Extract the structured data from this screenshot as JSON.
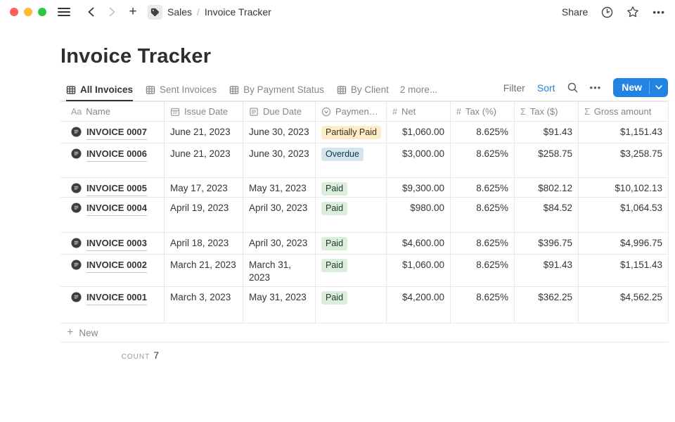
{
  "topbar": {
    "breadcrumb": {
      "workspace": "Sales",
      "separator": "/",
      "page": "Invoice Tracker",
      "icon": "tag-icon"
    },
    "share_label": "Share",
    "icons": [
      "clock-icon",
      "star-icon",
      "more-icon"
    ]
  },
  "page": {
    "title": "Invoice Tracker"
  },
  "views": {
    "tabs": [
      {
        "label": "All Invoices",
        "active": true,
        "icon": "table-view-icon"
      },
      {
        "label": "Sent Invoices",
        "active": false,
        "icon": "table-view-icon"
      },
      {
        "label": "By Payment Status",
        "active": false,
        "icon": "table-view-icon"
      },
      {
        "label": "By Client",
        "active": false,
        "icon": "table-view-icon"
      }
    ],
    "more_label": "2 more..."
  },
  "controls": {
    "filter_label": "Filter",
    "sort_label": "Sort",
    "new_label": "New",
    "search_icon": "search-icon",
    "more_icon": "more-icon"
  },
  "table": {
    "columns": [
      {
        "label": "Name",
        "icon": "text-property-icon",
        "glyph": "Aa"
      },
      {
        "label": "Issue Date",
        "icon": "calendar-icon",
        "glyph": null
      },
      {
        "label": "Due Date",
        "icon": "document-icon",
        "glyph": null
      },
      {
        "label": "Payment …",
        "icon": "select-property-icon",
        "glyph": null
      },
      {
        "label": "Net",
        "icon": "number-property-icon",
        "glyph": "#"
      },
      {
        "label": "Tax (%)",
        "icon": "number-property-icon",
        "glyph": "#"
      },
      {
        "label": "Tax ($)",
        "icon": "formula-property-icon",
        "glyph": "Σ"
      },
      {
        "label": "Gross amount",
        "icon": "formula-property-icon",
        "glyph": "Σ"
      }
    ],
    "rows": [
      {
        "name": "INVOICE 0007",
        "issue_date": "June 21, 2023",
        "due_date": "June 30, 2023",
        "status": {
          "label": "Partially Paid",
          "color": "yellow"
        },
        "net": "$1,060.00",
        "tax_pct": "8.625%",
        "tax_usd": "$91.43",
        "gross": "$1,151.43"
      },
      {
        "name": "INVOICE 0006",
        "issue_date": "June 21, 2023",
        "due_date": "June 30, 2023",
        "status": {
          "label": "Overdue",
          "color": "blue"
        },
        "net": "$3,000.00",
        "tax_pct": "8.625%",
        "tax_usd": "$258.75",
        "gross": "$3,258.75"
      },
      {
        "name": "INVOICE 0005",
        "issue_date": "May 17, 2023",
        "due_date": "May 31, 2023",
        "status": {
          "label": "Paid",
          "color": "green"
        },
        "net": "$9,300.00",
        "tax_pct": "8.625%",
        "tax_usd": "$802.12",
        "gross": "$10,102.13"
      },
      {
        "name": "INVOICE 0004",
        "issue_date": "April 19, 2023",
        "due_date": "April 30, 2023",
        "status": {
          "label": "Paid",
          "color": "green"
        },
        "net": "$980.00",
        "tax_pct": "8.625%",
        "tax_usd": "$84.52",
        "gross": "$1,064.53"
      },
      {
        "name": "INVOICE 0003",
        "issue_date": "April 18, 2023",
        "due_date": "April 30, 2023",
        "status": {
          "label": "Paid",
          "color": "green"
        },
        "net": "$4,600.00",
        "tax_pct": "8.625%",
        "tax_usd": "$396.75",
        "gross": "$4,996.75"
      },
      {
        "name": "INVOICE 0002",
        "issue_date": "March 21, 2023",
        "due_date": "March 31, 2023",
        "status": {
          "label": "Paid",
          "color": "green"
        },
        "net": "$1,060.00",
        "tax_pct": "8.625%",
        "tax_usd": "$91.43",
        "gross": "$1,151.43"
      },
      {
        "name": "INVOICE 0001",
        "issue_date": "March 3, 2023",
        "due_date": "May 31, 2023",
        "status": {
          "label": "Paid",
          "color": "green"
        },
        "net": "$4,200.00",
        "tax_pct": "8.625%",
        "tax_usd": "$362.25",
        "gross": "$4,562.25"
      }
    ],
    "new_row_label": "New",
    "footer": {
      "count_label": "count",
      "count_value": "7"
    }
  },
  "colors": {
    "accent_blue": "#2383e2",
    "badge_yellow_bg": "#fdecc8",
    "badge_blue_bg": "#d3e5ef",
    "badge_green_bg": "#dbeddb",
    "border": "#e9e9e7",
    "text_dark": "#37352f",
    "text_gray": "#87857f"
  }
}
